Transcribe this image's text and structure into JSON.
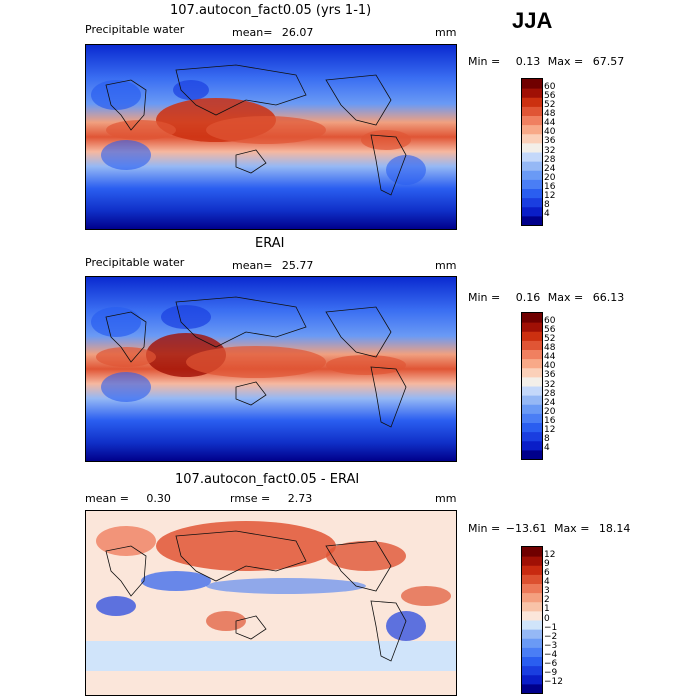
{
  "season_label": "JJA",
  "panels": [
    {
      "title": "107.autocon_fact0.05 (yrs 1-1)",
      "field_label": "Precipitable water",
      "mean_label": "mean=",
      "mean_value": "26.07",
      "units": "mm",
      "min_label": "Min =",
      "min_value": "0.13",
      "max_label": "Max =",
      "max_value": "67.57"
    },
    {
      "title": "ERAI",
      "field_label": "Precipitable water",
      "mean_label": "mean=",
      "mean_value": "25.77",
      "units": "mm",
      "min_label": "Min =",
      "min_value": "0.16",
      "max_label": "Max =",
      "max_value": "66.13"
    },
    {
      "title": "107.autocon_fact0.05 - ERAI",
      "mean_label": "mean =",
      "mean_value": "0.30",
      "rmse_label": "rmse =",
      "rmse_value": "2.73",
      "units": "mm",
      "min_label": "Min =",
      "min_value": "−13.61",
      "max_label": "Max =",
      "max_value": "18.14"
    }
  ],
  "chart_data": [
    {
      "type": "heatmap",
      "title": "107.autocon_fact0.05 (yrs 1-1)",
      "variable": "Precipitable water",
      "units": "mm",
      "mean": 26.07,
      "min": 0.13,
      "max": 67.57,
      "colorbar_levels": [
        4,
        8,
        12,
        16,
        20,
        24,
        28,
        32,
        36,
        40,
        44,
        48,
        52,
        56,
        60
      ],
      "colors": [
        "#00008b",
        "#0a1ec8",
        "#1a3ee0",
        "#2a5ef0",
        "#4a7ef5",
        "#6a9af5",
        "#95b8f5",
        "#c4d8fa",
        "#f3efe9",
        "#fbd0b9",
        "#f8a988",
        "#f08060",
        "#e05535",
        "#cc3010",
        "#a01005",
        "#700000"
      ]
    },
    {
      "type": "heatmap",
      "title": "ERAI",
      "variable": "Precipitable water",
      "units": "mm",
      "mean": 25.77,
      "min": 0.16,
      "max": 66.13,
      "colorbar_levels": [
        4,
        8,
        12,
        16,
        20,
        24,
        28,
        32,
        36,
        40,
        44,
        48,
        52,
        56,
        60
      ],
      "colors": [
        "#00008b",
        "#0a1ec8",
        "#1a3ee0",
        "#2a5ef0",
        "#4a7ef5",
        "#6a9af5",
        "#95b8f5",
        "#c4d8fa",
        "#f3efe9",
        "#fbd0b9",
        "#f8a988",
        "#f08060",
        "#e05535",
        "#cc3010",
        "#a01005",
        "#700000"
      ]
    },
    {
      "type": "heatmap",
      "title": "107.autocon_fact0.05 - ERAI",
      "units": "mm",
      "mean": 0.3,
      "rmse": 2.73,
      "min": -13.61,
      "max": 18.14,
      "colorbar_levels": [
        -12,
        -9,
        -6,
        -4,
        -3,
        -2,
        -1,
        0,
        1,
        2,
        3,
        4,
        6,
        9,
        12
      ],
      "colorbar_labels": [
        "−12",
        "−9",
        "−6",
        "−4",
        "−3",
        "−2",
        "−1",
        "0",
        "1",
        "2",
        "3",
        "4",
        "6",
        "9",
        "12"
      ],
      "colors": [
        "#00008b",
        "#0a1ec8",
        "#1a3ee0",
        "#2a5ef0",
        "#4a7ef5",
        "#6a9af5",
        "#95b8f5",
        "#d0e4fa",
        "#fbe6da",
        "#f8c3a8",
        "#f4a080",
        "#ec7858",
        "#dc5030",
        "#c82a10",
        "#a01005",
        "#700000"
      ]
    }
  ]
}
